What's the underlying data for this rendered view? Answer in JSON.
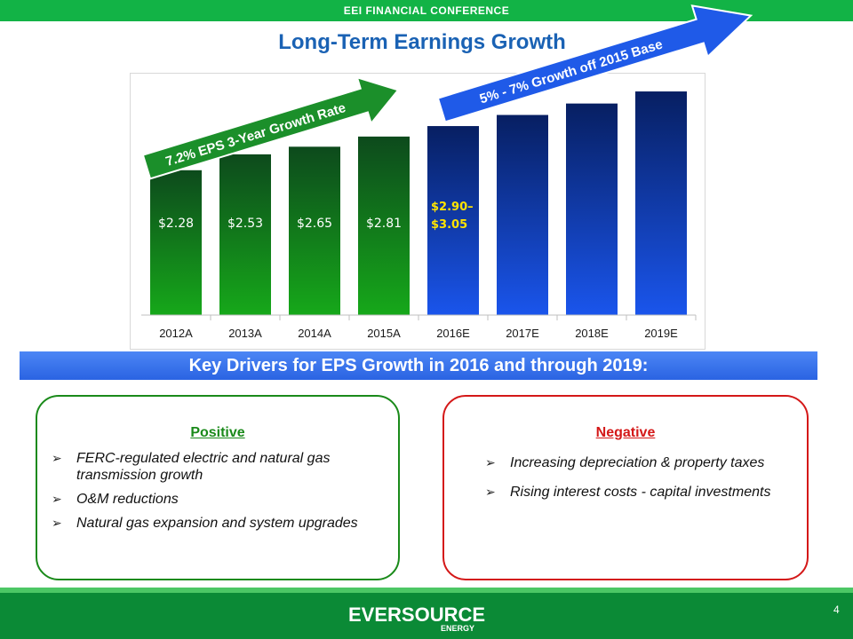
{
  "header": {
    "conference": "EEI FINANCIAL CONFERENCE",
    "title": "Long-Term Earnings Growth"
  },
  "chart_data": {
    "type": "bar",
    "categories": [
      "2012A",
      "2013A",
      "2014A",
      "2015A",
      "2016E",
      "2017E",
      "2018E",
      "2019E"
    ],
    "values": [
      2.28,
      2.53,
      2.65,
      2.81,
      2.975,
      3.15,
      3.33,
      3.52
    ],
    "value_labels": [
      "$2.28",
      "$2.53",
      "$2.65",
      "$2.81",
      "$2.90–\n$3.05",
      "",
      "",
      ""
    ],
    "ylim": [
      0,
      3.8
    ],
    "grid": false,
    "title": "",
    "xlabel": "",
    "ylabel": "",
    "colors": {
      "actual_top": "#0d4a1c",
      "actual_bottom": "#16a81a",
      "estimate_top": "#071f62",
      "estimate_bottom": "#1a55ec",
      "actual_label": "#ffffff",
      "estimate_label": "#ffe300"
    },
    "annotations": [
      {
        "text": "7.2% EPS 3-Year Growth Rate",
        "color": "#1b8f2a"
      },
      {
        "text": "5% - 7% Growth off 2015 Base",
        "color": "#1f5ae8"
      }
    ]
  },
  "drivers": {
    "banner": "Key Drivers for EPS Growth in 2016 and through 2019:",
    "positive": {
      "title": "Positive",
      "items": [
        "FERC-regulated electric and natural gas transmission growth",
        "O&M reductions",
        "Natural gas expansion and system upgrades"
      ]
    },
    "negative": {
      "title": "Negative",
      "items": [
        "Increasing depreciation & property taxes",
        "Rising interest costs - capital investments"
      ]
    },
    "bullet_glyph": "➢"
  },
  "footer": {
    "logo": "EVERSOURCE",
    "logo_sub": "ENERGY",
    "page": "4"
  }
}
